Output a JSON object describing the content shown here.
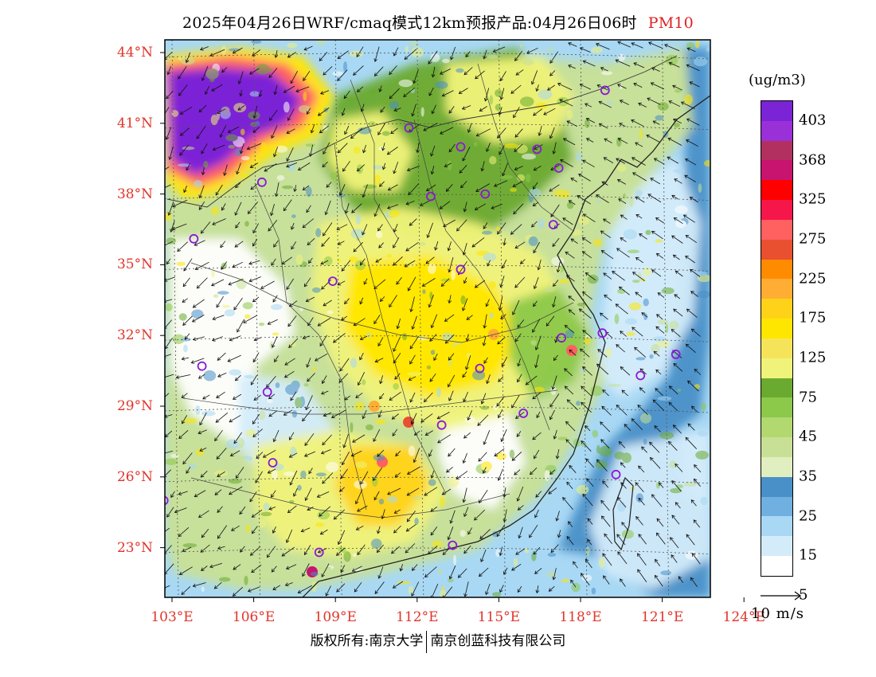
{
  "header": {
    "title": "2025年04月26日WRF/cmaq模式12km预报产品:04月26日06时",
    "pollutant": "PM10"
  },
  "axes": {
    "lat_labels": [
      "44°N",
      "41°N",
      "38°N",
      "35°N",
      "32°N",
      "29°N",
      "26°N",
      "23°N"
    ],
    "lat_values": [
      44,
      41,
      38,
      35,
      32,
      29,
      26,
      23
    ],
    "lon_labels": [
      "103°E",
      "106°E",
      "109°E",
      "112°E",
      "115°E",
      "118°E",
      "121°E",
      "124°E"
    ],
    "lon_values": [
      103,
      106,
      109,
      112,
      115,
      118,
      121,
      124
    ]
  },
  "legend": {
    "unit": "(ug/m3)",
    "labels": [
      "403",
      "368",
      "325",
      "275",
      "225",
      "175",
      "125",
      "75",
      "45",
      "35",
      "25",
      "15",
      "5"
    ],
    "colors": [
      "#7b24d6",
      "#9a30d8",
      "#b23060",
      "#c8146e",
      "#ff0000",
      "#f5164a",
      "#ff6060",
      "#e85030",
      "#ff8c00",
      "#ffad33",
      "#ffd21a",
      "#ffe600",
      "#f5e45a",
      "#f0f37a",
      "#6aaa30",
      "#8cc84a",
      "#b2d870",
      "#c8e096",
      "#e0eec0",
      "#4a90c8",
      "#70b0e0",
      "#a8d8f4",
      "#d4ecfa",
      "#ffffff"
    ],
    "vector_ref_label": "10 m/s"
  },
  "footer": {
    "copyright_left": "版权所有:南京大学",
    "copyright_right": "南京创蓝科技有限公司"
  },
  "cities": [
    {
      "lon": 118.9,
      "lat": 42.4
    },
    {
      "lon": 111.7,
      "lat": 40.8
    },
    {
      "lon": 113.6,
      "lat": 40.0
    },
    {
      "lon": 116.4,
      "lat": 39.9
    },
    {
      "lon": 117.2,
      "lat": 39.1
    },
    {
      "lon": 106.3,
      "lat": 38.5
    },
    {
      "lon": 112.5,
      "lat": 37.9
    },
    {
      "lon": 114.5,
      "lat": 38.0
    },
    {
      "lon": 117.0,
      "lat": 36.7
    },
    {
      "lon": 103.8,
      "lat": 36.1
    },
    {
      "lon": 113.6,
      "lat": 34.8
    },
    {
      "lon": 108.9,
      "lat": 34.3
    },
    {
      "lon": 117.3,
      "lat": 31.9
    },
    {
      "lon": 118.8,
      "lat": 32.1
    },
    {
      "lon": 121.5,
      "lat": 31.2
    },
    {
      "lon": 120.2,
      "lat": 30.3
    },
    {
      "lon": 114.3,
      "lat": 30.6
    },
    {
      "lon": 104.1,
      "lat": 30.7
    },
    {
      "lon": 106.5,
      "lat": 29.6
    },
    {
      "lon": 115.9,
      "lat": 28.7
    },
    {
      "lon": 112.9,
      "lat": 28.2
    },
    {
      "lon": 106.7,
      "lat": 26.6
    },
    {
      "lon": 119.3,
      "lat": 26.1
    },
    {
      "lon": 102.7,
      "lat": 25.0
    },
    {
      "lon": 113.3,
      "lat": 23.1
    },
    {
      "lon": 108.4,
      "lat": 22.8
    }
  ]
}
